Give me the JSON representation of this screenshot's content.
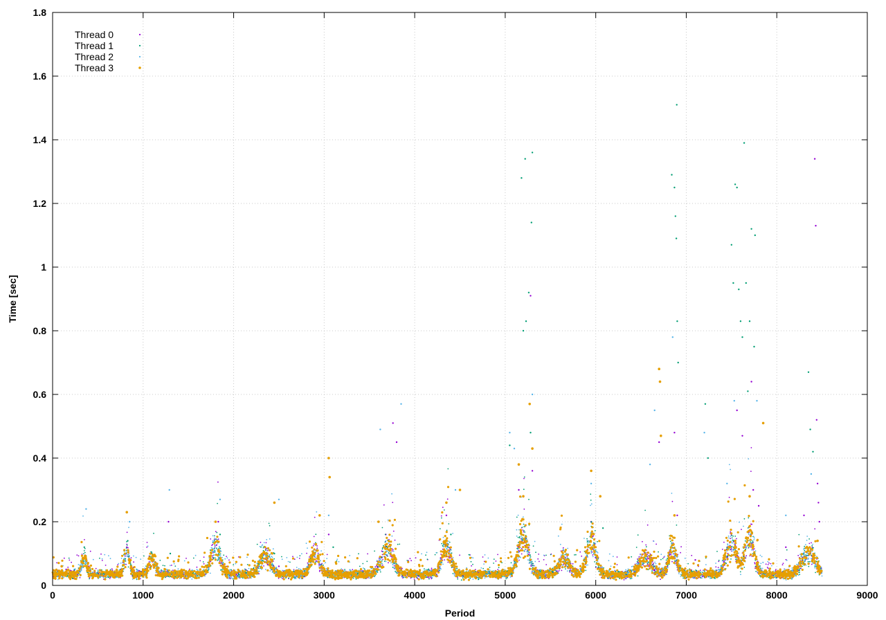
{
  "chart_data": {
    "type": "scatter",
    "title": "",
    "xlabel": "Period",
    "ylabel": "Time [sec]",
    "xlim": [
      0,
      9000
    ],
    "ylim": [
      0,
      1.8
    ],
    "x_ticks": [
      0,
      1000,
      2000,
      3000,
      4000,
      5000,
      6000,
      7000,
      8000,
      9000
    ],
    "x_tick_labels": [
      "0",
      "1000",
      "2000",
      "3000",
      "4000",
      "5000",
      "6000",
      "7000",
      "8000",
      "9000"
    ],
    "y_ticks": [
      0,
      0.2,
      0.4,
      0.6,
      0.8,
      1.0,
      1.2,
      1.4,
      1.6,
      1.8
    ],
    "y_tick_labels": [
      "0",
      "0.2",
      "0.4",
      "0.6",
      "0.8",
      "1",
      "1.2",
      "1.4",
      "1.6",
      "1.8"
    ],
    "grid": true,
    "legend_position": "top-left",
    "period_range": [
      0,
      8500
    ],
    "series": [
      {
        "name": "Thread 0",
        "color": "#9400d3",
        "points": [
          [
            150,
            0.05
          ],
          [
            400,
            0.06
          ],
          [
            820,
            0.12
          ],
          [
            1280,
            0.2
          ],
          [
            1830,
            0.2
          ],
          [
            2500,
            0.06
          ],
          [
            3050,
            0.16
          ],
          [
            3680,
            0.16
          ],
          [
            3760,
            0.51
          ],
          [
            3800,
            0.45
          ],
          [
            4350,
            0.22
          ],
          [
            5150,
            0.3
          ],
          [
            5280,
            0.91
          ],
          [
            5300,
            0.36
          ],
          [
            5950,
            0.2
          ],
          [
            6700,
            0.45
          ],
          [
            6870,
            0.48
          ],
          [
            6900,
            0.22
          ],
          [
            7100,
            0.08
          ],
          [
            7560,
            0.55
          ],
          [
            7620,
            0.47
          ],
          [
            7720,
            0.64
          ],
          [
            7740,
            0.3
          ],
          [
            7800,
            0.25
          ],
          [
            8100,
            0.12
          ],
          [
            8300,
            0.22
          ],
          [
            8420,
            1.34
          ],
          [
            8430,
            1.13
          ],
          [
            8440,
            0.52
          ],
          [
            8450,
            0.32
          ],
          [
            8460,
            0.26
          ],
          [
            8470,
            0.2
          ]
        ]
      },
      {
        "name": "Thread 1",
        "color": "#009e73",
        "points": [
          [
            350,
            0.12
          ],
          [
            830,
            0.14
          ],
          [
            1300,
            0.1
          ],
          [
            1850,
            0.16
          ],
          [
            2450,
            0.1
          ],
          [
            3100,
            0.12
          ],
          [
            3700,
            0.12
          ],
          [
            4400,
            0.16
          ],
          [
            5050,
            0.44
          ],
          [
            5180,
            1.28
          ],
          [
            5200,
            0.8
          ],
          [
            5220,
            1.34
          ],
          [
            5230,
            0.83
          ],
          [
            5260,
            0.92
          ],
          [
            5280,
            0.48
          ],
          [
            5290,
            1.14
          ],
          [
            5300,
            1.36
          ],
          [
            6080,
            0.18
          ],
          [
            6840,
            1.29
          ],
          [
            6870,
            1.25
          ],
          [
            6880,
            1.16
          ],
          [
            6890,
            1.09
          ],
          [
            6895,
            1.51
          ],
          [
            6900,
            0.83
          ],
          [
            6910,
            0.7
          ],
          [
            7210,
            0.57
          ],
          [
            7240,
            0.4
          ],
          [
            7500,
            1.07
          ],
          [
            7520,
            0.95
          ],
          [
            7540,
            1.26
          ],
          [
            7560,
            1.25
          ],
          [
            7580,
            0.93
          ],
          [
            7600,
            0.83
          ],
          [
            7620,
            0.78
          ],
          [
            7640,
            1.39
          ],
          [
            7660,
            0.95
          ],
          [
            7680,
            0.61
          ],
          [
            7700,
            0.83
          ],
          [
            7720,
            1.12
          ],
          [
            7750,
            0.75
          ],
          [
            7760,
            1.1
          ],
          [
            8350,
            0.67
          ],
          [
            8370,
            0.49
          ],
          [
            8400,
            0.42
          ]
        ]
      },
      {
        "name": "Thread 2",
        "color": "#56b4e9",
        "points": [
          [
            370,
            0.24
          ],
          [
            850,
            0.2
          ],
          [
            1290,
            0.3
          ],
          [
            1850,
            0.27
          ],
          [
            2500,
            0.27
          ],
          [
            3050,
            0.22
          ],
          [
            3620,
            0.49
          ],
          [
            3850,
            0.57
          ],
          [
            4450,
            0.3
          ],
          [
            5050,
            0.48
          ],
          [
            5100,
            0.43
          ],
          [
            5300,
            0.6
          ],
          [
            5950,
            0.32
          ],
          [
            6600,
            0.38
          ],
          [
            6650,
            0.55
          ],
          [
            6850,
            0.78
          ],
          [
            7200,
            0.48
          ],
          [
            7450,
            0.32
          ],
          [
            7530,
            0.58
          ],
          [
            7780,
            0.58
          ],
          [
            8100,
            0.22
          ],
          [
            8380,
            0.35
          ]
        ]
      },
      {
        "name": "Thread 3",
        "color": "#e69f00",
        "points": [
          [
            100,
            0.06
          ],
          [
            820,
            0.23
          ],
          [
            1000,
            0.05
          ],
          [
            1800,
            0.2
          ],
          [
            2450,
            0.26
          ],
          [
            2950,
            0.22
          ],
          [
            3050,
            0.4
          ],
          [
            3060,
            0.34
          ],
          [
            3600,
            0.2
          ],
          [
            4350,
            0.26
          ],
          [
            4500,
            0.3
          ],
          [
            5150,
            0.38
          ],
          [
            5200,
            0.28
          ],
          [
            5270,
            0.57
          ],
          [
            5300,
            0.43
          ],
          [
            5950,
            0.36
          ],
          [
            6050,
            0.28
          ],
          [
            6700,
            0.68
          ],
          [
            6710,
            0.64
          ],
          [
            6720,
            0.47
          ],
          [
            6870,
            0.22
          ],
          [
            7540,
            0.14
          ],
          [
            7580,
            0.06
          ],
          [
            7700,
            0.28
          ],
          [
            7850,
            0.51
          ],
          [
            8200,
            0.06
          ],
          [
            8450,
            0.14
          ]
        ]
      }
    ]
  }
}
